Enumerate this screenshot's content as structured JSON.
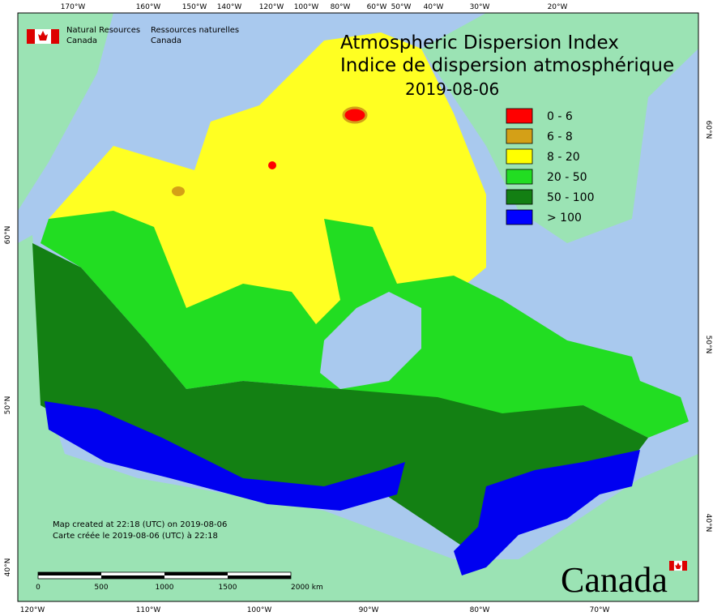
{
  "header": {
    "org_en": [
      "Natural Resources",
      "Canada"
    ],
    "org_fr": [
      "Ressources naturelles",
      "Canada"
    ]
  },
  "title": {
    "en": "Atmospheric Dispersion Index",
    "fr": "Indice de dispersion atmosphérique",
    "date": "2019-08-06"
  },
  "legend": [
    {
      "label": "0 - 6",
      "color": "#ff0000"
    },
    {
      "label": "6 - 8",
      "color": "#d4a017"
    },
    {
      "label": "8 - 20",
      "color": "#ffff00"
    },
    {
      "label": "20 - 50",
      "color": "#22dd22"
    },
    {
      "label": "50 - 100",
      "color": "#137f13"
    },
    {
      "label": "> 100",
      "color": "#0000ff"
    }
  ],
  "graticule": {
    "top": [
      "170°W",
      "160°W",
      "150°W",
      "140°W",
      "120°W",
      "100°W",
      "80°W",
      "60°W",
      "50°W",
      "40°W",
      "30°W",
      "20°W"
    ],
    "bottom": [
      "120°W",
      "110°W",
      "100°W",
      "90°W",
      "80°W",
      "70°W"
    ],
    "right": [
      "60°N",
      "50°N",
      "40°N"
    ],
    "left": [
      "60°N",
      "50°N",
      "40°N"
    ]
  },
  "footer": {
    "created_en": "Map created at 22:18 (UTC) on 2019-08-06",
    "created_fr": "Carte créée le 2019-08-06 (UTC) à 22:18",
    "scale": [
      "0",
      "500",
      "1000",
      "1500",
      "2000 km"
    ],
    "wordmark": "Canada"
  }
}
